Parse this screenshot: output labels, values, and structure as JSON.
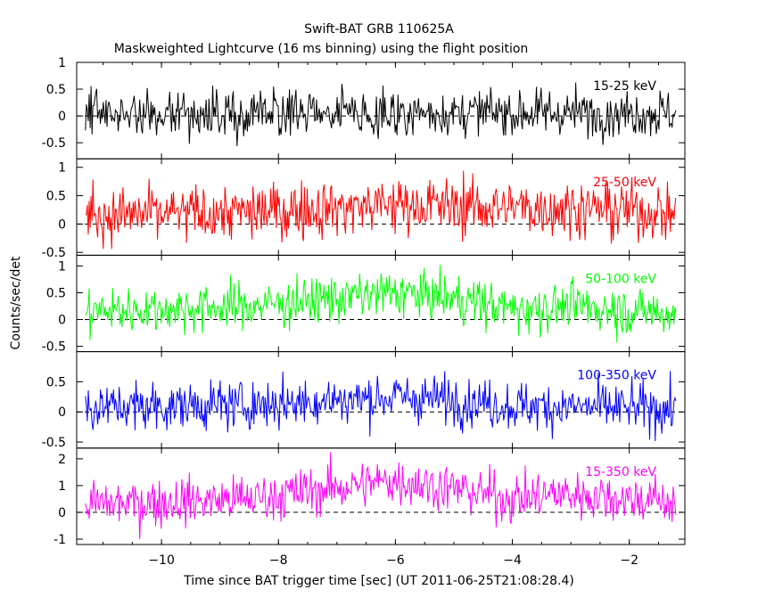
{
  "title": "Swift-BAT GRB 110625A",
  "subtitle": "Maskweighted Lightcurve (16 ms binning) using the flight position",
  "xlabel": "Time since BAT trigger time [sec] (UT 2011-06-25T21:08:28.4)",
  "ylabel": "Counts/sec/det",
  "chart_data": {
    "type": "line",
    "x_range": [
      -11.3,
      -1.2
    ],
    "xlim": [
      -11.45,
      -1.05
    ],
    "xticks": [
      -10,
      -8,
      -6,
      -4,
      -2
    ],
    "grid": false,
    "panels": [
      {
        "name": "15-25 keV",
        "color": "#000000",
        "ylim": [
          -0.8,
          1.0
        ],
        "yticks": [
          -0.5,
          0,
          0.5,
          1
        ],
        "trend": [
          [
            -11.3,
            0.05
          ],
          [
            -8.0,
            0.05
          ],
          [
            -6.0,
            0.06
          ],
          [
            -3.0,
            0.06
          ],
          [
            -1.2,
            0.05
          ]
        ],
        "noise_sd": 0.22
      },
      {
        "name": "25-50 keV",
        "color": "#ff0000",
        "ylim": [
          -0.55,
          1.15
        ],
        "yticks": [
          -0.5,
          0,
          0.5,
          1
        ],
        "trend": [
          [
            -11.3,
            0.15
          ],
          [
            -8.5,
            0.2
          ],
          [
            -6.0,
            0.35
          ],
          [
            -4.5,
            0.3
          ],
          [
            -3.0,
            0.28
          ],
          [
            -1.2,
            0.2
          ]
        ],
        "noise_sd": 0.25
      },
      {
        "name": "50-100 keV",
        "color": "#00ff00",
        "ylim": [
          -0.6,
          1.2
        ],
        "yticks": [
          -0.5,
          0,
          0.5,
          1
        ],
        "trend": [
          [
            -11.3,
            0.15
          ],
          [
            -8.5,
            0.25
          ],
          [
            -6.0,
            0.5
          ],
          [
            -5.0,
            0.4
          ],
          [
            -4.0,
            0.2
          ],
          [
            -3.0,
            0.25
          ],
          [
            -1.2,
            0.1
          ]
        ],
        "noise_sd": 0.22
      },
      {
        "name": "100-350 keV",
        "color": "#0000ff",
        "ylim": [
          -0.6,
          1.0
        ],
        "yticks": [
          -0.5,
          0,
          0.5
        ],
        "trend": [
          [
            -11.3,
            0.08
          ],
          [
            -8.5,
            0.12
          ],
          [
            -6.0,
            0.25
          ],
          [
            -5.0,
            0.2
          ],
          [
            -4.0,
            0.1
          ],
          [
            -1.2,
            0.05
          ]
        ],
        "noise_sd": 0.2
      },
      {
        "name": "15-350 keV",
        "color": "#ff00ff",
        "ylim": [
          -1.2,
          2.4
        ],
        "yticks": [
          -1,
          0,
          1,
          2
        ],
        "trend": [
          [
            -11.3,
            0.3
          ],
          [
            -8.5,
            0.5
          ],
          [
            -6.0,
            1.2
          ],
          [
            -5.0,
            0.9
          ],
          [
            -4.0,
            0.5
          ],
          [
            -3.2,
            0.7
          ],
          [
            -1.2,
            0.4
          ]
        ],
        "noise_sd": 0.45
      }
    ]
  }
}
